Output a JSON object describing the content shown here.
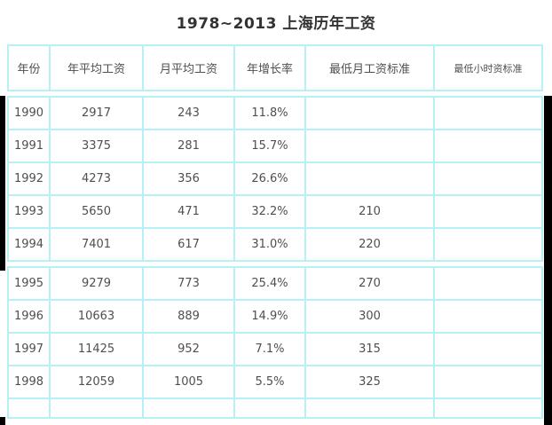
{
  "page": {
    "title": "1978~2013 上海历年工资"
  },
  "colors": {
    "table_border": "#b5f1f5",
    "cell_text": "#4f4f4f",
    "title_text": "#333333",
    "screen_edge": "#000000"
  },
  "table": {
    "columns": [
      "年份",
      "年平均工资",
      "月平均工资",
      "年增长率",
      "最低月工资标准",
      "最低小时资标准"
    ],
    "groups": [
      {
        "rows": [
          [
            "1990",
            "2917",
            "243",
            "11.8%",
            "",
            ""
          ],
          [
            "1991",
            "3375",
            "281",
            "15.7%",
            "",
            ""
          ],
          [
            "1992",
            "4273",
            "356",
            "26.6%",
            "",
            ""
          ],
          [
            "1993",
            "5650",
            "471",
            "32.2%",
            "210",
            ""
          ],
          [
            "1994",
            "7401",
            "617",
            "31.0%",
            "220",
            ""
          ]
        ]
      },
      {
        "rows": [
          [
            "1995",
            "9279",
            "773",
            "25.4%",
            "270",
            ""
          ],
          [
            "1996",
            "10663",
            "889",
            "14.9%",
            "300",
            ""
          ],
          [
            "1997",
            "11425",
            "952",
            "7.1%",
            "315",
            ""
          ],
          [
            "1998",
            "12059",
            "1005",
            "5.5%",
            "325",
            ""
          ]
        ]
      }
    ]
  },
  "chart_data": {
    "type": "table",
    "title": "1978~2013 上海历年工资",
    "columns": [
      "年份",
      "年平均工资",
      "月平均工资",
      "年增长率",
      "最低月工资标准",
      "最低小时资标准"
    ],
    "rows": [
      [
        "1990",
        2917,
        243,
        "11.8%",
        null,
        null
      ],
      [
        "1991",
        3375,
        281,
        "15.7%",
        null,
        null
      ],
      [
        "1992",
        4273,
        356,
        "26.6%",
        null,
        null
      ],
      [
        "1993",
        5650,
        471,
        "32.2%",
        210,
        null
      ],
      [
        "1994",
        7401,
        617,
        "31.0%",
        220,
        null
      ],
      [
        "1995",
        9279,
        773,
        "25.4%",
        270,
        null
      ],
      [
        "1996",
        10663,
        889,
        "14.9%",
        300,
        null
      ],
      [
        "1997",
        11425,
        952,
        "7.1%",
        315,
        null
      ],
      [
        "1998",
        12059,
        1005,
        "5.5%",
        325,
        null
      ]
    ],
    "notes": "Rows 1990-1994 and 1995-1998 rendered as two bordered blocks; a further empty row is cut off at the bottom of the viewport; minimum-hourly-wage column values not visible."
  }
}
